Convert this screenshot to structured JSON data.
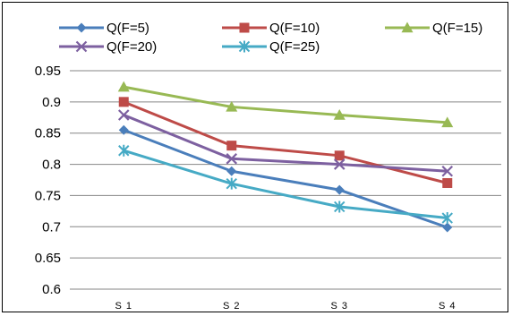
{
  "chart_data": {
    "type": "line",
    "title": "",
    "xlabel": "",
    "ylabel": "",
    "categories": [
      "S 1",
      "S 2",
      "S 3",
      "S 4"
    ],
    "ylim": [
      0.6,
      0.95
    ],
    "yticks": [
      "0.6",
      "0.65",
      "0.7",
      "0.75",
      "0.8",
      "0.85",
      "0.9",
      "0.95"
    ],
    "grid": true,
    "legend_position": "top",
    "series": [
      {
        "name": "Q(F=5)",
        "values": [
          0.855,
          0.789,
          0.759,
          0.699
        ],
        "color": "#4a7ebb",
        "marker": "diamond"
      },
      {
        "name": "Q(F=10)",
        "values": [
          0.9,
          0.83,
          0.814,
          0.77
        ],
        "color": "#be4b48",
        "marker": "square"
      },
      {
        "name": "Q(F=15)",
        "values": [
          0.924,
          0.892,
          0.879,
          0.867
        ],
        "color": "#98b954",
        "marker": "triangle"
      },
      {
        "name": "Q(F=20)",
        "values": [
          0.879,
          0.809,
          0.8,
          0.789
        ],
        "color": "#7d60a0",
        "marker": "x"
      },
      {
        "name": "Q(F=25)",
        "values": [
          0.822,
          0.769,
          0.732,
          0.714
        ],
        "color": "#46aac5",
        "marker": "star"
      }
    ]
  }
}
